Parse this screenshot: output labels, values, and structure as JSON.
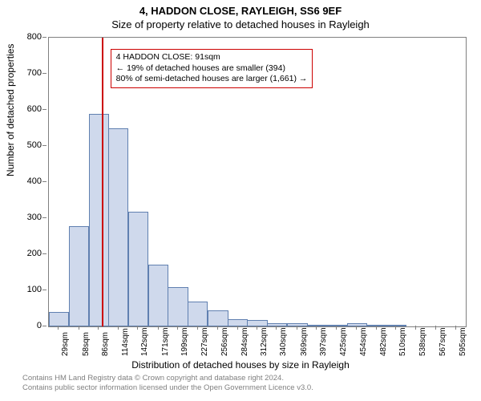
{
  "title_line1": "4, HADDON CLOSE, RAYLEIGH, SS6 9EF",
  "title_line2": "Size of property relative to detached houses in Rayleigh",
  "y_axis_label": "Number of detached properties",
  "x_axis_label": "Distribution of detached houses by size in Rayleigh",
  "chart": {
    "type": "bar",
    "ylim": [
      0,
      800
    ],
    "ytick_step": 100,
    "bar_fill": "#cfd9ec",
    "bar_stroke": "#6080b0",
    "ref_line_x": 91,
    "ref_line_color": "#cc0000",
    "x_categories_sqm": [
      29,
      58,
      86,
      114,
      142,
      171,
      199,
      227,
      256,
      284,
      312,
      340,
      369,
      397,
      425,
      454,
      482,
      510,
      538,
      567,
      595
    ],
    "x_range": [
      14.8,
      609.2
    ],
    "values": [
      40,
      278,
      590,
      548,
      318,
      172,
      110,
      70,
      45,
      20,
      18,
      10,
      10,
      4,
      2,
      8,
      2,
      2,
      0,
      0,
      0
    ]
  },
  "annotation": {
    "line1": "4 HADDON CLOSE: 91sqm",
    "line2": "← 19% of detached houses are smaller (394)",
    "line3": "80% of semi-detached houses are larger (1,661) →"
  },
  "footer": {
    "line1": "Contains HM Land Registry data © Crown copyright and database right 2024.",
    "line2": "Contains public sector information licensed under the Open Government Licence v3.0."
  }
}
